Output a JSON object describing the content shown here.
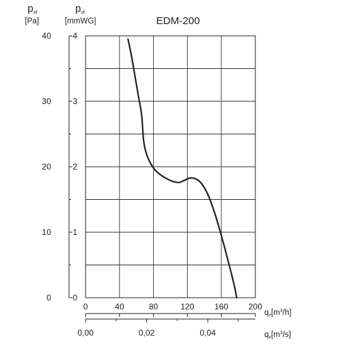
{
  "chart_data": {
    "type": "line",
    "title": "EDM-200",
    "y_left_label": {
      "symbol": "p",
      "subscript": "sf",
      "unit": "[Pa]"
    },
    "y_right_label": {
      "symbol": "p",
      "subscript": "sf",
      "unit": "[mmWG]"
    },
    "x_top_label": {
      "symbol": "q",
      "subscript": "v",
      "unit": "[m",
      "sup": "3",
      "unit_end": "/h]"
    },
    "x_bottom_label": {
      "symbol": "q",
      "subscript": "v",
      "unit": "[m",
      "sup": "3",
      "unit_end": "/s]"
    },
    "y_left_ticks": [
      "0",
      "10",
      "20",
      "30",
      "40"
    ],
    "y_right_ticks": [
      "0",
      "1",
      "2",
      "3",
      "4"
    ],
    "x_top_ticks": [
      "0",
      "40",
      "80",
      "120",
      "160",
      "200"
    ],
    "x_bottom_ticks": [
      "0,00",
      "0,02",
      "0,04"
    ],
    "xlim": [
      0,
      200
    ],
    "ylim": [
      0,
      40
    ],
    "grid": true,
    "series": [
      {
        "x": [
          50,
          54,
          58,
          62,
          66,
          68,
          70,
          74,
          80,
          86,
          94,
          102,
          110,
          116,
          124,
          132,
          138,
          144,
          148,
          152,
          156,
          160,
          164,
          168,
          172,
          176,
          178
        ],
        "y": [
          39.5,
          37.0,
          34.0,
          31.0,
          28.0,
          24.5,
          22.8,
          21.2,
          19.8,
          19.0,
          18.3,
          17.8,
          17.6,
          17.9,
          18.3,
          18.0,
          17.2,
          15.8,
          14.5,
          13.0,
          11.3,
          9.5,
          7.6,
          5.6,
          3.6,
          1.4,
          0.0
        ],
        "color": "#222222"
      }
    ]
  }
}
